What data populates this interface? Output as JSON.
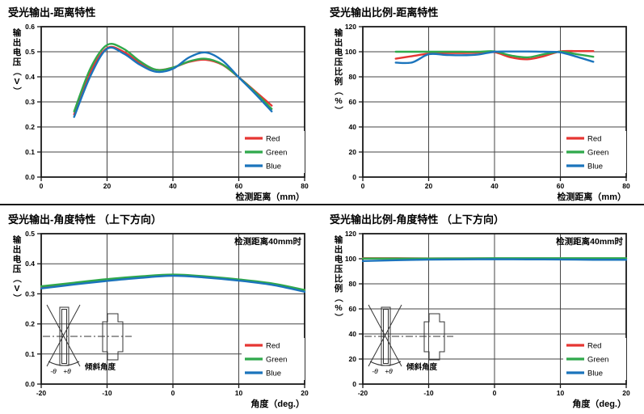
{
  "colors": {
    "red": "#e63633",
    "green": "#2fa84b",
    "blue": "#1b74bc",
    "grid": "#454545",
    "frame": "#1a1a1a",
    "text": "#000000",
    "background": "#ffffff"
  },
  "chart_data": [
    {
      "type": "line",
      "title": "受光输出-距离特性",
      "xlabel": "检测距离（mm）",
      "ylabel": "输出电压（V）",
      "xlim": [
        0,
        80
      ],
      "ylim": [
        0,
        0.6
      ],
      "xticks": [
        0,
        20,
        40,
        60,
        80
      ],
      "xtick_labels": [
        "0",
        "20",
        "40",
        "60",
        "80"
      ],
      "yticks": [
        0,
        0.1,
        0.2,
        0.3,
        0.4,
        0.5,
        0.6
      ],
      "ytick_labels": [
        "0.0",
        "0.1",
        "0.2",
        "0.3",
        "0.4",
        "0.5",
        "0.6"
      ],
      "grid": true,
      "legend_position": "bottom-right",
      "annotation": "",
      "inset": null,
      "x": [
        10,
        15,
        20,
        25,
        30,
        35,
        40,
        45,
        50,
        55,
        60,
        65,
        70
      ],
      "series": [
        {
          "name": "Red",
          "color": "#e63633",
          "values": [
            0.25,
            0.42,
            0.515,
            0.5,
            0.455,
            0.428,
            0.437,
            0.46,
            0.468,
            0.448,
            0.398,
            0.342,
            0.285
          ]
        },
        {
          "name": "Green",
          "color": "#2fa84b",
          "values": [
            0.262,
            0.435,
            0.527,
            0.512,
            0.462,
            0.428,
            0.437,
            0.462,
            0.472,
            0.45,
            0.398,
            0.338,
            0.272
          ]
        },
        {
          "name": "Blue",
          "color": "#1b74bc",
          "values": [
            0.24,
            0.405,
            0.512,
            0.493,
            0.448,
            0.42,
            0.432,
            0.478,
            0.497,
            0.465,
            0.398,
            0.332,
            0.262
          ]
        }
      ]
    },
    {
      "type": "line",
      "title": "受光输出比例-距离特性",
      "xlabel": "检测距离（mm）",
      "ylabel": "输出电压比例（%）",
      "xlim": [
        0,
        80
      ],
      "ylim": [
        0,
        120
      ],
      "xticks": [
        0,
        20,
        40,
        60,
        80
      ],
      "xtick_labels": [
        "0",
        "20",
        "40",
        "60",
        "80"
      ],
      "yticks": [
        0,
        20,
        40,
        60,
        80,
        100,
        120
      ],
      "ytick_labels": [
        "0",
        "20",
        "40",
        "60",
        "80",
        "100",
        "120"
      ],
      "grid": true,
      "legend_position": "bottom-right",
      "annotation": "",
      "inset": null,
      "x": [
        10,
        15,
        20,
        25,
        30,
        35,
        40,
        45,
        50,
        55,
        60,
        65,
        70
      ],
      "series": [
        {
          "name": "Red",
          "color": "#e63633",
          "values": [
            94.5,
            96.5,
            98.5,
            99.0,
            99.0,
            99.3,
            99.6,
            95.5,
            94.0,
            96.5,
            100.3,
            100.5,
            100.5
          ]
        },
        {
          "name": "Green",
          "color": "#2fa84b",
          "values": [
            100,
            100,
            100,
            100,
            100,
            100,
            100.3,
            97.0,
            95.5,
            98.0,
            100.0,
            98.0,
            96.0
          ]
        },
        {
          "name": "Blue",
          "color": "#1b74bc",
          "values": [
            91.3,
            91.5,
            98.0,
            97.5,
            97.2,
            97.8,
            100.0,
            100.2,
            100.2,
            100.0,
            99.5,
            96.0,
            92.0
          ]
        }
      ]
    },
    {
      "type": "line",
      "title": "受光输出-角度特性 （上下方向）",
      "xlabel": "角度（deg.）",
      "ylabel": "输出电压（V）",
      "xlim": [
        -20,
        20
      ],
      "ylim": [
        0,
        0.5
      ],
      "xticks": [
        -20,
        -10,
        0,
        10,
        20
      ],
      "xtick_labels": [
        "-20",
        "-10",
        "0",
        "10",
        "20"
      ],
      "yticks": [
        0,
        0.1,
        0.2,
        0.3,
        0.4,
        0.5
      ],
      "ytick_labels": [
        "0.0",
        "0.1",
        "0.2",
        "0.3",
        "0.4",
        "0.5"
      ],
      "grid": true,
      "legend_position": "bottom-right",
      "annotation": "检测距离40mm时",
      "inset": {
        "minus_label": "-θ",
        "plus_label": "+θ",
        "caption": "倾斜角度"
      },
      "x": [
        -20,
        -15,
        -10,
        -5,
        0,
        5,
        10,
        15,
        20
      ],
      "series": [
        {
          "name": "Red",
          "color": "#e63633",
          "values": [
            0.322,
            0.334,
            0.346,
            0.356,
            0.362,
            0.356,
            0.346,
            0.332,
            0.31
          ]
        },
        {
          "name": "Green",
          "color": "#2fa84b",
          "values": [
            0.325,
            0.337,
            0.349,
            0.358,
            0.364,
            0.358,
            0.348,
            0.335,
            0.313
          ]
        },
        {
          "name": "Blue",
          "color": "#1b74bc",
          "values": [
            0.318,
            0.331,
            0.343,
            0.353,
            0.36,
            0.354,
            0.344,
            0.33,
            0.307
          ]
        }
      ]
    },
    {
      "type": "line",
      "title": "受光输出比例-角度特性 （上下方向）",
      "xlabel": "角度（deg.）",
      "ylabel": "输出电压比例（%）",
      "xlim": [
        -20,
        20
      ],
      "ylim": [
        0,
        120
      ],
      "xticks": [
        -20,
        -10,
        0,
        10,
        20
      ],
      "xtick_labels": [
        "-20",
        "-10",
        "0",
        "10",
        "20"
      ],
      "yticks": [
        0,
        20,
        40,
        60,
        80,
        100,
        120
      ],
      "ytick_labels": [
        "0",
        "20",
        "40",
        "60",
        "80",
        "100",
        "120"
      ],
      "grid": true,
      "legend_position": "bottom-right",
      "annotation": "检测距离40mm时",
      "inset": {
        "minus_label": "-θ",
        "plus_label": "+θ",
        "caption": "倾斜角度"
      },
      "x": [
        -20,
        -15,
        -10,
        -5,
        0,
        5,
        10,
        15,
        20
      ],
      "series": [
        {
          "name": "Red",
          "color": "#e63633",
          "values": [
            100.4,
            100.4,
            100.3,
            100.3,
            100.2,
            100.1,
            99.9,
            99.8,
            100.2
          ]
        },
        {
          "name": "Green",
          "color": "#2fa84b",
          "values": [
            100.2,
            100.2,
            100.2,
            100.3,
            100.4,
            100.4,
            100.4,
            100.4,
            100.4
          ]
        },
        {
          "name": "Blue",
          "color": "#1b74bc",
          "values": [
            98.2,
            98.8,
            99.3,
            99.5,
            99.6,
            99.5,
            99.4,
            99.2,
            99.2
          ]
        }
      ]
    }
  ]
}
